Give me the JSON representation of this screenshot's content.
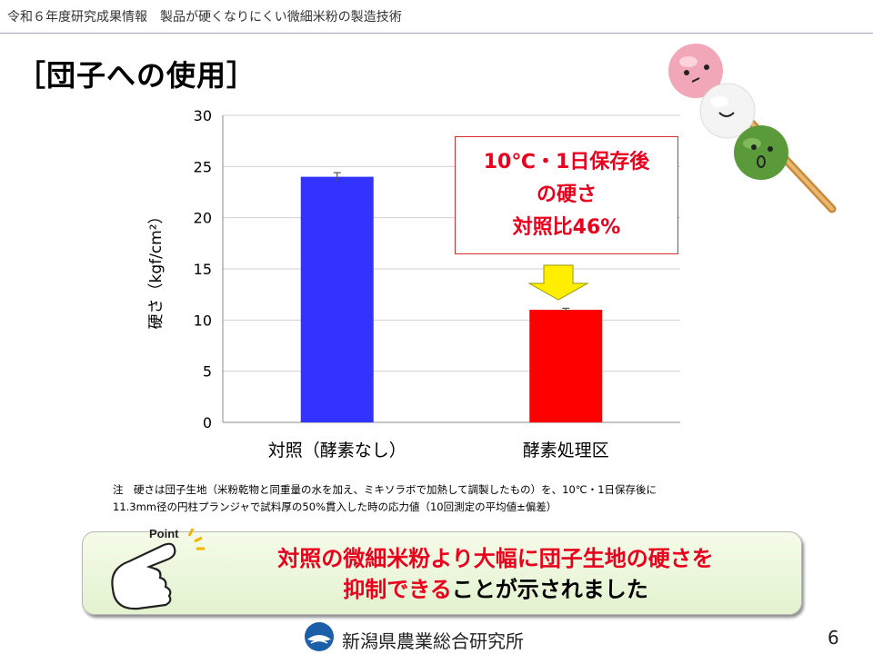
{
  "header": {
    "text": "令和６年度研究成果情報　製品が硬くなりにくい微細米粉の製造技術"
  },
  "slide_title": "［団子への使用］",
  "chart_data": {
    "type": "bar",
    "categories": [
      "対照（酵素なし）",
      "酵素処理区"
    ],
    "values": [
      24.0,
      11.0
    ],
    "errors": [
      0.4,
      0.15
    ],
    "colors": [
      "#3333ff",
      "#ff0000"
    ],
    "ylabel": "硬さ（kgf/cm²）",
    "ylim": [
      0,
      30
    ],
    "yticks": [
      0,
      5,
      10,
      15,
      20,
      25,
      30
    ],
    "grid": true
  },
  "callout": {
    "line1": "10℃・1日保存後",
    "line2": "の硬さ",
    "line3": "対照比46%"
  },
  "note": {
    "line1": "注　硬さは団子生地（米粉乾物と同重量の水を加え、ミキソラボで加熱して調製したもの）を、10℃・1日保存後に",
    "line2": "11.3mm径の円柱プランジャで試料厚の50%貫入した時の応力値（10回測定の平均値±偏差）"
  },
  "point": {
    "label": "Point",
    "line1": "対照の微細米粉より大幅に団子生地の硬さを",
    "line2_red": "抑制できる",
    "line2_black": "ことが示されました"
  },
  "footer": {
    "org": "新潟県農業総合研究所",
    "page": "6"
  }
}
